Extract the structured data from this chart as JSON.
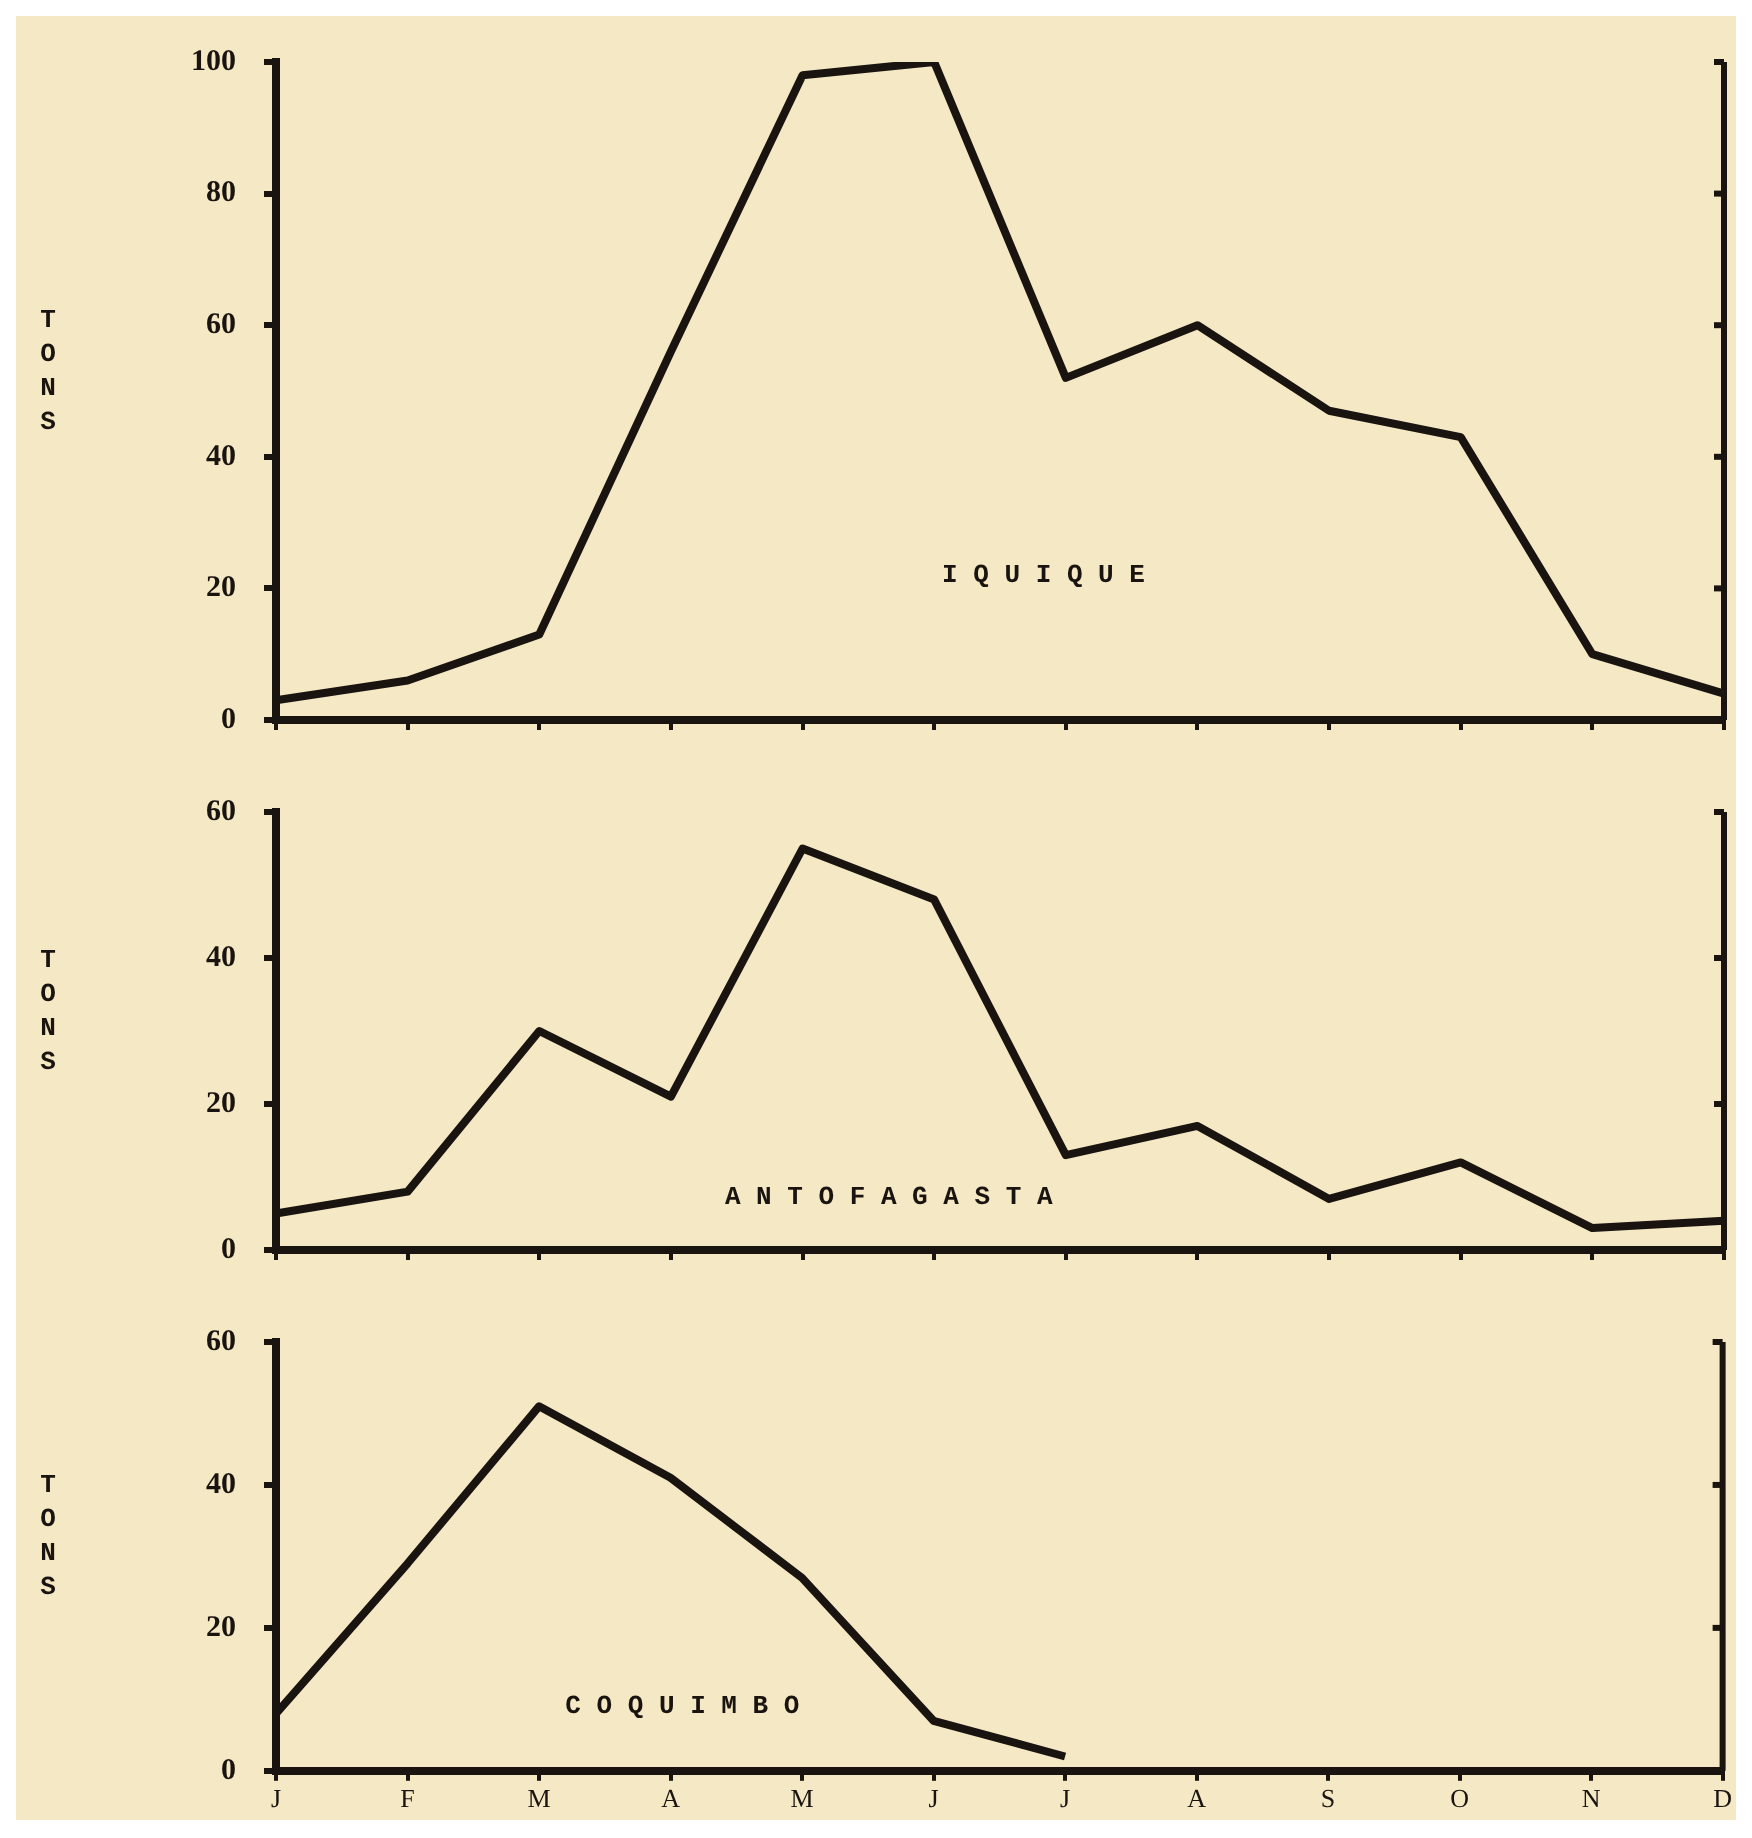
{
  "chart_data": [
    {
      "type": "line",
      "ylabel": "TONS",
      "annotations": [
        "I Q U I Q U E"
      ],
      "categories": [
        null,
        null,
        null,
        null,
        null,
        null,
        null,
        null,
        null,
        null,
        null,
        null
      ],
      "tick_labels": "y",
      "series": [
        {
          "color": "#1a1410",
          "values": [
            3,
            6,
            13,
            56,
            98,
            100,
            52,
            60,
            47,
            43,
            10,
            4
          ]
        }
      ],
      "ylim": [
        0,
        100
      ],
      "yticks": [
        0,
        20,
        40,
        60,
        80,
        100
      ],
      "grid": false,
      "legend": false,
      "marker": "none",
      "line_style": "solid"
    },
    {
      "type": "line",
      "ylabel": "TONS",
      "annotations": [
        "A N T O F A G A S T A"
      ],
      "categories": [
        null,
        null,
        null,
        null,
        null,
        null,
        null,
        null,
        null,
        null,
        null,
        null
      ],
      "tick_labels": "y",
      "series": [
        {
          "color": "#1a1410",
          "values": [
            5,
            8,
            30,
            21,
            55,
            48,
            13,
            17,
            7,
            12,
            3,
            4
          ]
        }
      ],
      "ylim": [
        0,
        60
      ],
      "yticks": [
        0,
        20,
        40,
        60
      ],
      "grid": false,
      "legend": false,
      "marker": "none",
      "line_style": "solid"
    },
    {
      "type": "line",
      "ylabel": "TONS",
      "annotations": [
        "C O Q U I M B O"
      ],
      "categories": [
        "J",
        "F",
        "M",
        "A",
        "M",
        "J",
        "J",
        "A",
        "S",
        "O",
        "N",
        "D"
      ],
      "series": [
        {
          "color": "#1a1410",
          "values": [
            8,
            29,
            51,
            41,
            27,
            7,
            2,
            null,
            null,
            null,
            null,
            null
          ]
        }
      ],
      "ylim": [
        0,
        60
      ],
      "yticks": [
        0,
        20,
        40,
        60
      ],
      "grid": false,
      "legend": false,
      "marker": "none",
      "line_style": "solid"
    }
  ]
}
